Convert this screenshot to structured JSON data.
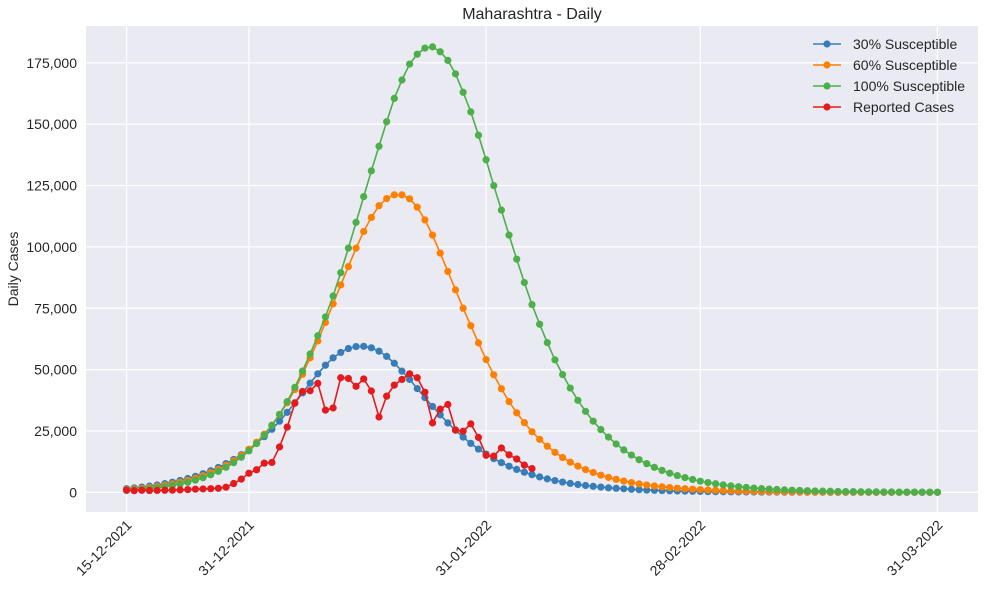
{
  "chart_data": {
    "type": "line",
    "title": "Maharashtra - Daily",
    "xlabel": "",
    "ylabel": "Daily Cases",
    "x_start": "15-12-2021",
    "x_end": "31-03-2022",
    "x_ticks": [
      "15-12-2021",
      "31-12-2021",
      "31-01-2022",
      "28-02-2022",
      "31-03-2022"
    ],
    "ylim": [
      -8000,
      190000
    ],
    "y_ticks": [
      0,
      25000,
      50000,
      75000,
      100000,
      125000,
      150000,
      175000
    ],
    "y_tick_labels": [
      "0",
      "25,000",
      "50,000",
      "75,000",
      "100,000",
      "125,000",
      "150,000",
      "175,000"
    ],
    "grid": true,
    "legend_position": "top-right",
    "series": [
      {
        "name": "30% Susceptible",
        "color": "#377eb8",
        "start": "15-12-2021",
        "values": [
          1500,
          1800,
          2150,
          2550,
          3000,
          3550,
          4150,
          4850,
          5650,
          6550,
          7600,
          8800,
          10150,
          11700,
          13400,
          15350,
          17550,
          20000,
          22700,
          25700,
          29000,
          32600,
          36500,
          40500,
          44500,
          48300,
          51800,
          54800,
          57000,
          58600,
          59400,
          59500,
          58900,
          57500,
          55400,
          52600,
          49400,
          46000,
          42300,
          38600,
          35000,
          31600,
          28300,
          25300,
          22500,
          19950,
          17650,
          15600,
          13750,
          12100,
          10650,
          9350,
          8200,
          7200,
          6300,
          5500,
          4800,
          4200,
          3650,
          3200,
          2800,
          2450,
          2150,
          1850,
          1650,
          1450,
          1250,
          1100,
          950,
          850,
          750,
          650,
          550,
          500,
          430,
          380,
          330,
          290,
          250,
          220,
          190,
          170,
          150,
          130,
          115,
          100,
          88,
          77,
          68,
          60,
          52,
          46,
          40,
          35,
          31,
          27,
          24,
          21,
          18,
          16,
          14,
          12,
          11,
          9,
          8,
          7,
          6
        ]
      },
      {
        "name": "60% Susceptible",
        "color": "#ff7f00",
        "start": "15-12-2021",
        "values": [
          1100,
          1350,
          1650,
          2000,
          2400,
          2900,
          3450,
          4100,
          4850,
          5750,
          6800,
          8000,
          9400,
          11000,
          12900,
          15000,
          17500,
          20400,
          23700,
          27400,
          31700,
          36500,
          41900,
          48100,
          54800,
          61700,
          69200,
          76800,
          84500,
          92000,
          99500,
          106300,
          112000,
          116800,
          119700,
          121200,
          121200,
          119600,
          116200,
          111000,
          104800,
          97500,
          90000,
          82500,
          75000,
          67900,
          60900,
          54100,
          47900,
          42200,
          37000,
          32400,
          28400,
          24700,
          21600,
          18800,
          16300,
          14200,
          12300,
          10700,
          9300,
          8100,
          7000,
          6100,
          5300,
          4600,
          4000,
          3450,
          3000,
          2600,
          2250,
          1950,
          1700,
          1480,
          1280,
          1110,
          960,
          830,
          720,
          620,
          540,
          470,
          410,
          350,
          300,
          260,
          225,
          195,
          170,
          147,
          127,
          110,
          95,
          82,
          71,
          61,
          53,
          46,
          40,
          34,
          30,
          26,
          22,
          19,
          16,
          14,
          12
        ]
      },
      {
        "name": "100% Susceptible",
        "color": "#4daf4a",
        "start": "15-12-2021",
        "values": [
          800,
          1000,
          1250,
          1550,
          1900,
          2300,
          2800,
          3400,
          4100,
          4950,
          5950,
          7150,
          8550,
          10200,
          12100,
          14300,
          16900,
          19900,
          23300,
          27300,
          31800,
          37000,
          42800,
          49400,
          56400,
          63800,
          71500,
          80000,
          89500,
          99500,
          110000,
          120500,
          131000,
          141000,
          151000,
          160500,
          168000,
          174500,
          178500,
          181000,
          181500,
          179500,
          176000,
          170500,
          163000,
          155000,
          145500,
          135500,
          125000,
          115000,
          104800,
          95000,
          85500,
          76500,
          68500,
          61000,
          54000,
          48000,
          42500,
          37500,
          33000,
          29000,
          25600,
          22500,
          19700,
          17300,
          15200,
          13300,
          11700,
          10200,
          8950,
          7800,
          6850,
          6000,
          5250,
          4550,
          4000,
          3500,
          3050,
          2650,
          2300,
          2000,
          1750,
          1530,
          1330,
          1160,
          1010,
          880,
          770,
          670,
          580,
          505,
          440,
          385,
          335,
          290,
          253,
          220,
          192,
          167,
          145,
          126,
          110,
          96,
          83,
          73,
          63
        ]
      },
      {
        "name": "Reported Cases",
        "color": "#e41a1c",
        "start": "15-12-2021",
        "values": [
          900,
          700,
          850,
          750,
          800,
          850,
          900,
          1000,
          1150,
          1300,
          1400,
          1500,
          1650,
          2100,
          3600,
          5400,
          7800,
          9200,
          11900,
          12200,
          18500,
          26600,
          36300,
          41100,
          41400,
          44400,
          33500,
          34400,
          46700,
          46400,
          43200,
          46200,
          41300,
          30700,
          39200,
          43700,
          46000,
          48300,
          46700,
          40800,
          28300,
          33900,
          35800,
          25400,
          24900,
          27900,
          22400,
          15100,
          14800,
          18100,
          15300,
          13600,
          11100,
          9700
        ]
      }
    ]
  }
}
